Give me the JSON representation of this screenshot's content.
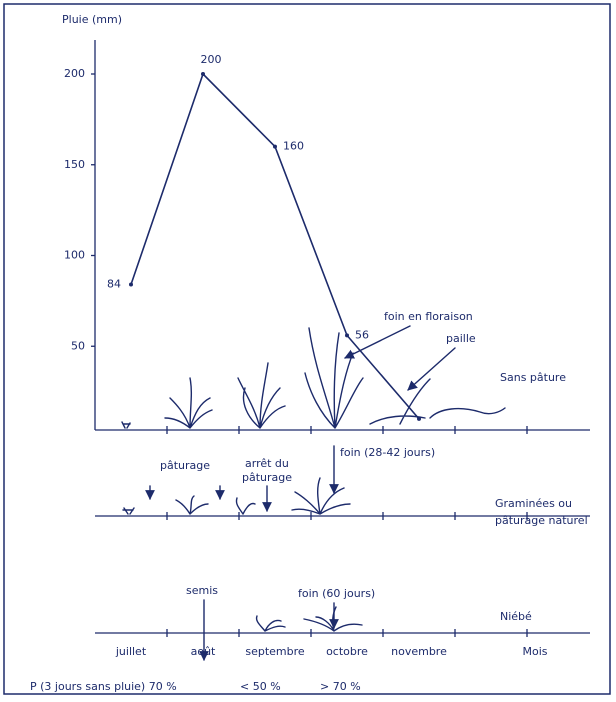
{
  "chart_data": {
    "type": "line",
    "y_label": "Pluie (mm)",
    "x_label": "Mois",
    "categories": [
      "juillet",
      "août",
      "septembre",
      "octobre",
      "novembre"
    ],
    "values": [
      84,
      200,
      160,
      56,
      10
    ],
    "value_labels": [
      "84",
      "200",
      "160",
      "56",
      null
    ],
    "color": "#1d2b6b",
    "ylim": [
      0,
      200
    ],
    "yticks": [
      50,
      100,
      150,
      200
    ],
    "row_labels": [
      "Sans pâture",
      "Graminées ou",
      "pâturage naturel",
      "Niébé"
    ],
    "annotations": [
      "foin en floraison",
      "paille",
      "foin (28-42 jours)",
      "pâturage",
      "arrêt du",
      "pâturage",
      "semis",
      "foin (60 jours)"
    ],
    "probability": [
      "P (3 jours sans pluie) 70 %",
      "< 50 %",
      "> 70 %"
    ]
  }
}
